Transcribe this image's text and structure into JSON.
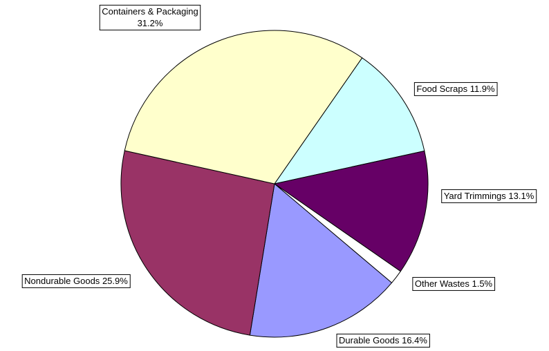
{
  "chart_data": {
    "type": "pie",
    "categories": [
      "Food Scraps",
      "Yard Trimmings",
      "Other Wastes",
      "Durable Goods",
      "Nondurable Goods",
      "Containers & Packaging"
    ],
    "values": [
      11.9,
      13.1,
      1.5,
      16.4,
      25.9,
      31.2
    ],
    "value_labels": [
      "11.9%",
      "13.1%",
      "1.5%",
      "16.4%",
      "25.9%",
      "31.2%"
    ],
    "colors": [
      "#ccffff",
      "#660066",
      "#ffffff",
      "#9999ff",
      "#993366",
      "#ffffcc"
    ]
  }
}
